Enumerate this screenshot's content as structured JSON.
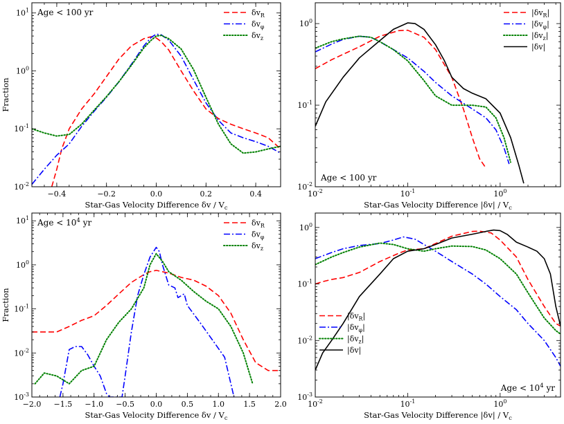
{
  "chart_data": [
    {
      "id": "p1",
      "type": "line",
      "title": "",
      "panel_label": "Age < 100 yr",
      "panel_label_pos": "top-left",
      "xlabel": "Star-Gas Velocity Difference δv / V_c",
      "ylabel": "Fraction",
      "xlim": [
        -0.5,
        0.5
      ],
      "ylim": [
        0.01,
        15
      ],
      "xscale": "linear",
      "yscale": "log",
      "xticks": [
        -0.4,
        -0.2,
        0.0,
        0.2,
        0.4
      ],
      "xtick_labels": [
        "−0.4",
        "−0.2",
        "0.0",
        "0.2",
        "0.4"
      ],
      "yticks": [
        0.01,
        0.1,
        1,
        10
      ],
      "ytick_labels": [
        "10^-2",
        "10^-1",
        "10^0",
        "10^1"
      ],
      "legend_pos": "top-right",
      "series": [
        {
          "name": "δv_R",
          "style": "dashed",
          "color": "#ff0000",
          "x": [
            -0.42,
            -0.4,
            -0.38,
            -0.35,
            -0.3,
            -0.25,
            -0.2,
            -0.15,
            -0.1,
            -0.05,
            -0.02,
            0.0,
            0.02,
            0.05,
            0.1,
            0.15,
            0.2,
            0.25,
            0.3,
            0.35,
            0.4,
            0.45,
            0.5
          ],
          "y": [
            0.01,
            0.02,
            0.045,
            0.1,
            0.22,
            0.4,
            0.8,
            1.6,
            2.7,
            3.6,
            3.9,
            3.7,
            3.2,
            2.3,
            1.0,
            0.45,
            0.22,
            0.15,
            0.12,
            0.1,
            0.085,
            0.07,
            0.045
          ]
        },
        {
          "name": "δv_φ",
          "style": "dashdot",
          "color": "#0000ff",
          "x": [
            -0.5,
            -0.45,
            -0.4,
            -0.35,
            -0.3,
            -0.25,
            -0.2,
            -0.15,
            -0.1,
            -0.05,
            -0.02,
            0.0,
            0.02,
            0.05,
            0.1,
            0.15,
            0.2,
            0.25,
            0.3,
            0.35,
            0.4,
            0.45,
            0.5
          ],
          "y": [
            0.011,
            0.02,
            0.035,
            0.055,
            0.11,
            0.2,
            0.35,
            0.65,
            1.3,
            2.7,
            3.8,
            4.3,
            4.2,
            3.4,
            1.8,
            0.7,
            0.28,
            0.14,
            0.085,
            0.07,
            0.06,
            0.05,
            0.038
          ]
        },
        {
          "name": "δv_z",
          "style": "dotted",
          "color": "#008000",
          "x": [
            -0.5,
            -0.45,
            -0.4,
            -0.35,
            -0.3,
            -0.25,
            -0.2,
            -0.15,
            -0.1,
            -0.05,
            -0.02,
            0.0,
            0.02,
            0.05,
            0.1,
            0.15,
            0.2,
            0.25,
            0.3,
            0.35,
            0.4,
            0.45,
            0.5
          ],
          "y": [
            0.1,
            0.085,
            0.075,
            0.08,
            0.12,
            0.21,
            0.36,
            0.65,
            1.25,
            2.5,
            3.4,
            4.0,
            4.1,
            3.6,
            2.4,
            1.05,
            0.35,
            0.12,
            0.055,
            0.038,
            0.04,
            0.045,
            0.05
          ]
        }
      ]
    },
    {
      "id": "p2",
      "type": "line",
      "title": "",
      "panel_label": "Age < 100 yr",
      "panel_label_pos": "bottom-left",
      "xlabel": "Star-Gas Velocity Difference |δv| / V_c",
      "ylabel": "",
      "xlim": [
        0.01,
        4.5
      ],
      "ylim": [
        0.01,
        1.8
      ],
      "xscale": "log",
      "yscale": "log",
      "xticks": [
        0.01,
        0.1,
        1
      ],
      "xtick_labels": [
        "10^-2",
        "10^-1",
        "10^0"
      ],
      "yticks": [
        0.01,
        0.1,
        1
      ],
      "ytick_labels": [
        "10^-2",
        "10^-1",
        "10^0"
      ],
      "legend_pos": "top-right",
      "series": [
        {
          "name": "|δv_R|",
          "style": "dashed",
          "color": "#ff0000",
          "x": [
            0.01,
            0.015,
            0.02,
            0.03,
            0.05,
            0.08,
            0.1,
            0.15,
            0.2,
            0.3,
            0.4,
            0.5,
            0.6,
            0.7
          ],
          "y": [
            0.28,
            0.36,
            0.42,
            0.52,
            0.7,
            0.82,
            0.83,
            0.68,
            0.48,
            0.22,
            0.09,
            0.04,
            0.022,
            0.017
          ]
        },
        {
          "name": "|δv_φ|",
          "style": "dashdot",
          "color": "#0000ff",
          "x": [
            0.01,
            0.015,
            0.02,
            0.03,
            0.04,
            0.05,
            0.07,
            0.1,
            0.15,
            0.2,
            0.3,
            0.5,
            0.7,
            0.9,
            1.1,
            1.25
          ],
          "y": [
            0.45,
            0.56,
            0.64,
            0.7,
            0.68,
            0.6,
            0.48,
            0.38,
            0.26,
            0.19,
            0.13,
            0.09,
            0.07,
            0.05,
            0.03,
            0.019
          ]
        },
        {
          "name": "|δv_z|",
          "style": "dotted",
          "color": "#008000",
          "x": [
            0.01,
            0.015,
            0.02,
            0.03,
            0.04,
            0.05,
            0.07,
            0.1,
            0.15,
            0.2,
            0.3,
            0.5,
            0.7,
            0.9,
            1.1,
            1.3
          ],
          "y": [
            0.5,
            0.6,
            0.65,
            0.7,
            0.68,
            0.6,
            0.48,
            0.35,
            0.2,
            0.13,
            0.1,
            0.1,
            0.095,
            0.07,
            0.04,
            0.02
          ]
        },
        {
          "name": "|δv|",
          "style": "solid",
          "color": "#000000",
          "x": [
            0.01,
            0.013,
            0.02,
            0.03,
            0.05,
            0.07,
            0.1,
            0.12,
            0.15,
            0.2,
            0.25,
            0.3,
            0.4,
            0.5,
            0.7,
            1.0,
            1.3,
            1.6,
            1.8
          ],
          "y": [
            0.055,
            0.11,
            0.22,
            0.38,
            0.62,
            0.85,
            1.02,
            1.0,
            0.85,
            0.55,
            0.35,
            0.22,
            0.16,
            0.14,
            0.12,
            0.08,
            0.04,
            0.018,
            0.011
          ]
        }
      ]
    },
    {
      "id": "p3",
      "type": "line",
      "title": "",
      "panel_label": "Age < 10^4 yr",
      "panel_label_pos": "top-left",
      "xlabel": "Star-Gas Velocity Difference δv / V_c",
      "ylabel": "Fraction",
      "xlim": [
        -2.0,
        2.0
      ],
      "ylim": [
        0.001,
        15
      ],
      "xscale": "linear",
      "yscale": "log",
      "xticks": [
        -2.0,
        -1.5,
        -1.0,
        -0.5,
        0.0,
        0.5,
        1.0,
        1.5,
        2.0
      ],
      "xtick_labels": [
        "−2.0",
        "−1.5",
        "−1.0",
        "−0.5",
        "0.0",
        "0.5",
        "1.0",
        "1.5",
        "2.0"
      ],
      "yticks": [
        0.001,
        0.01,
        0.1,
        1,
        10
      ],
      "ytick_labels": [
        "10^-3",
        "10^-2",
        "10^-1",
        "10^0",
        "10^1"
      ],
      "legend_pos": "top-right",
      "series": [
        {
          "name": "δv_R",
          "style": "dashed",
          "color": "#ff0000",
          "x": [
            -2.0,
            -1.8,
            -1.6,
            -1.4,
            -1.2,
            -1.0,
            -0.8,
            -0.6,
            -0.4,
            -0.2,
            -0.1,
            0.0,
            0.2,
            0.4,
            0.6,
            0.8,
            1.0,
            1.2,
            1.4,
            1.6,
            1.8,
            2.0
          ],
          "y": [
            0.03,
            0.03,
            0.03,
            0.04,
            0.055,
            0.07,
            0.12,
            0.22,
            0.4,
            0.6,
            0.7,
            0.75,
            0.65,
            0.52,
            0.45,
            0.33,
            0.2,
            0.08,
            0.02,
            0.006,
            0.004,
            0.004
          ]
        },
        {
          "name": "δv_φ",
          "style": "dashdot",
          "color": "#0000ff",
          "x": [
            -1.55,
            -1.5,
            -1.4,
            -1.3,
            -1.2,
            -1.1,
            -1.0,
            -0.9,
            -0.8,
            -0.75,
            -0.55,
            -0.5,
            -0.4,
            -0.3,
            -0.2,
            -0.1,
            0.0,
            0.05,
            0.1,
            0.2,
            0.3,
            0.35,
            0.45,
            0.5,
            0.7,
            0.9,
            1.1,
            1.25
          ],
          "y": [
            0.001,
            0.002,
            0.012,
            0.014,
            0.014,
            0.009,
            0.005,
            0.003,
            0.0012,
            0.001,
            0.001,
            0.003,
            0.03,
            0.2,
            0.6,
            1.5,
            2.5,
            2.0,
            1.0,
            0.35,
            0.3,
            0.18,
            0.22,
            0.12,
            0.05,
            0.02,
            0.008,
            0.001
          ]
        },
        {
          "name": "δv_z",
          "style": "dotted",
          "color": "#008000",
          "x": [
            -1.95,
            -1.8,
            -1.6,
            -1.4,
            -1.2,
            -1.0,
            -0.8,
            -0.6,
            -0.4,
            -0.2,
            -0.1,
            0.0,
            0.1,
            0.2,
            0.4,
            0.6,
            0.8,
            1.0,
            1.2,
            1.4,
            1.55
          ],
          "y": [
            0.002,
            0.0035,
            0.003,
            0.002,
            0.004,
            0.005,
            0.02,
            0.05,
            0.1,
            0.3,
            1.0,
            1.8,
            1.2,
            0.7,
            0.45,
            0.25,
            0.15,
            0.1,
            0.04,
            0.01,
            0.002
          ]
        }
      ]
    },
    {
      "id": "p4",
      "type": "line",
      "title": "",
      "panel_label": "Age < 10^4 yr",
      "panel_label_pos": "bottom-right",
      "xlabel": "Star-Gas Velocity Difference |δv| / V_c",
      "ylabel": "",
      "xlim": [
        0.01,
        4.5
      ],
      "ylim": [
        0.001,
        1.8
      ],
      "xscale": "log",
      "yscale": "log",
      "xticks": [
        0.01,
        0.1,
        1
      ],
      "xtick_labels": [
        "10^-2",
        "10^-1",
        "10^0"
      ],
      "yticks": [
        0.001,
        0.01,
        0.1,
        1
      ],
      "ytick_labels": [
        "10^-3",
        "10^-2",
        "10^-1",
        "10^0"
      ],
      "legend_pos": "bottom-left",
      "series": [
        {
          "name": "|δv_R|",
          "style": "dashed",
          "color": "#ff0000",
          "x": [
            0.01,
            0.012,
            0.015,
            0.02,
            0.03,
            0.05,
            0.08,
            0.1,
            0.15,
            0.2,
            0.3,
            0.5,
            0.6,
            0.8,
            1.0,
            1.5,
            2.0,
            3.0,
            4.0,
            4.5
          ],
          "y": [
            0.1,
            0.11,
            0.12,
            0.13,
            0.16,
            0.25,
            0.35,
            0.4,
            0.42,
            0.52,
            0.7,
            0.85,
            0.86,
            0.8,
            0.6,
            0.3,
            0.12,
            0.04,
            0.02,
            0.018
          ]
        },
        {
          "name": "|δv_φ|",
          "style": "dashdot",
          "color": "#0000ff",
          "x": [
            0.01,
            0.015,
            0.02,
            0.03,
            0.05,
            0.07,
            0.09,
            0.12,
            0.15,
            0.2,
            0.3,
            0.5,
            0.7,
            1.0,
            1.5,
            2.0,
            3.0,
            4.0,
            4.5
          ],
          "y": [
            0.28,
            0.36,
            0.42,
            0.48,
            0.52,
            0.6,
            0.68,
            0.62,
            0.5,
            0.38,
            0.25,
            0.15,
            0.1,
            0.06,
            0.035,
            0.02,
            0.01,
            0.005,
            0.0035
          ]
        },
        {
          "name": "|δv_z|",
          "style": "dotted",
          "color": "#008000",
          "x": [
            0.01,
            0.015,
            0.02,
            0.03,
            0.05,
            0.07,
            0.1,
            0.15,
            0.2,
            0.3,
            0.5,
            0.7,
            1.0,
            1.5,
            2.0,
            3.0,
            4.0,
            4.5
          ],
          "y": [
            0.22,
            0.3,
            0.36,
            0.45,
            0.53,
            0.5,
            0.42,
            0.38,
            0.42,
            0.47,
            0.46,
            0.4,
            0.28,
            0.15,
            0.07,
            0.025,
            0.015,
            0.013
          ]
        },
        {
          "name": "|δv|",
          "style": "solid",
          "color": "#000000",
          "x": [
            0.01,
            0.012,
            0.015,
            0.02,
            0.03,
            0.05,
            0.07,
            0.1,
            0.15,
            0.2,
            0.3,
            0.5,
            0.7,
            0.85,
            1.0,
            1.2,
            1.5,
            2.0,
            2.5,
            3.0,
            3.5,
            4.0,
            4.5
          ],
          "y": [
            0.003,
            0.006,
            0.01,
            0.02,
            0.06,
            0.15,
            0.28,
            0.38,
            0.42,
            0.5,
            0.65,
            0.76,
            0.85,
            0.9,
            0.88,
            0.75,
            0.55,
            0.45,
            0.38,
            0.28,
            0.15,
            0.04,
            0.018
          ]
        }
      ]
    }
  ]
}
